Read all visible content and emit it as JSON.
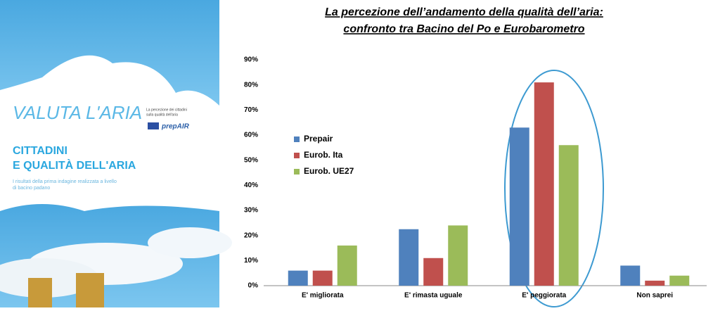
{
  "cover": {
    "logo": "VALUTA L'ARIA",
    "logo_note": [
      "La percezione dei cittadini",
      "sulla qualità dell'aria"
    ],
    "brand": "prepAIR",
    "heading": [
      "CITTADINI",
      "E QUALITÀ DELL'ARIA"
    ],
    "subtitle": [
      "I risultati della prima indagine realizzata a livello",
      "di bacino padano"
    ]
  },
  "chart_data": {
    "type": "bar",
    "title": [
      "La percezione dell’andamento della  qualità dell’aria:",
      "confronto tra Bacino del Po e Eurobarometro"
    ],
    "categories": [
      "E' migliorata",
      "E' rimasta uguale",
      "E' peggiorata",
      "Non saprei"
    ],
    "series": [
      {
        "name": "Prepair",
        "color": "#4f81bd",
        "values": [
          6,
          22.5,
          63,
          8
        ]
      },
      {
        "name": "Eurob. Ita",
        "color": "#c0504d",
        "values": [
          6,
          11,
          81,
          2
        ]
      },
      {
        "name": "Eurob. UE27",
        "color": "#9bbb59",
        "values": [
          16,
          24,
          56,
          4
        ]
      }
    ],
    "ylim": [
      0,
      90
    ],
    "yticks": [
      {
        "value": 0,
        "label": "0%"
      },
      {
        "value": 10,
        "label": "10%"
      },
      {
        "value": 20,
        "label": "20%"
      },
      {
        "value": 30,
        "label": "30%"
      },
      {
        "value": 40,
        "label": "40%"
      },
      {
        "value": 50,
        "label": "50%"
      },
      {
        "value": 60,
        "label": "60%"
      },
      {
        "value": 70,
        "label": "70%"
      },
      {
        "value": 80,
        "label": "80%"
      },
      {
        "value": 90,
        "label": "90%"
      }
    ],
    "grid": false,
    "legend": "left"
  }
}
